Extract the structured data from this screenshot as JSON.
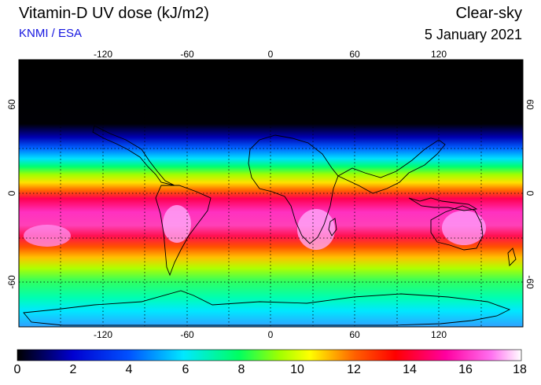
{
  "header": {
    "title": "Vitamin-D UV dose (kJ/m2)",
    "source": "KNMI / ESA",
    "sky": "Clear-sky",
    "date": "5 January 2021"
  },
  "map": {
    "lon_ticks": [
      "-120",
      "-60",
      "0",
      "60",
      "120"
    ],
    "lat_ticks": [
      "60",
      "0",
      "-60"
    ],
    "lon_range": [
      -180,
      180
    ],
    "lat_range": [
      -90,
      90
    ],
    "grid": "dotted, every 30 degrees"
  },
  "colorbar": {
    "labels": [
      "0",
      "2",
      "4",
      "6",
      "8",
      "10",
      "12",
      "14",
      "16",
      "18"
    ],
    "range": [
      0,
      18
    ],
    "colors": [
      "#000000",
      "#0000ff",
      "#00c8ff",
      "#00ff80",
      "#80ff00",
      "#ffff00",
      "#ff8000",
      "#ff0000",
      "#ff00b0",
      "#ff80ff",
      "#ffffff"
    ]
  }
}
